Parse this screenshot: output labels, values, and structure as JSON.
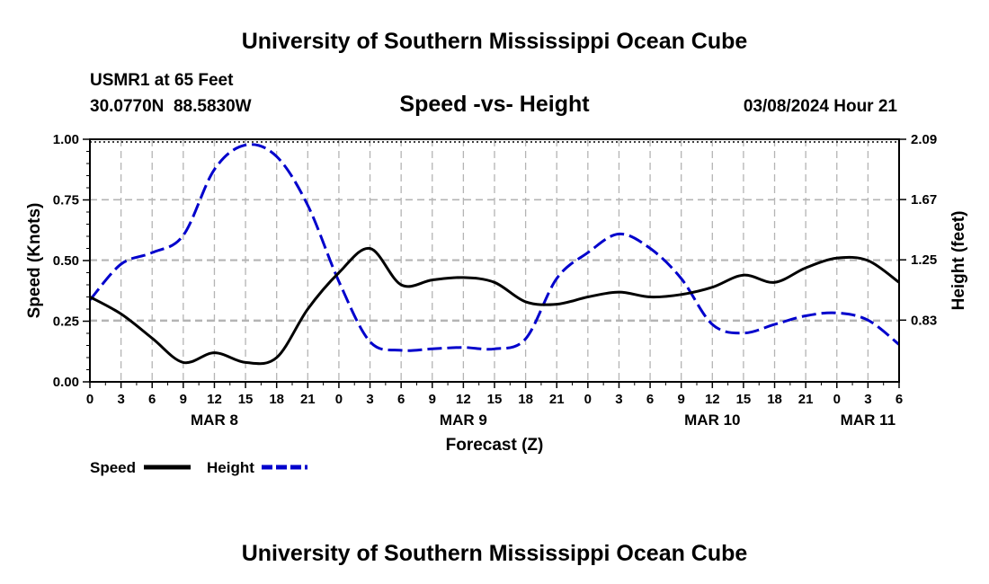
{
  "header": {
    "title_top": "University of Southern Mississippi Ocean Cube",
    "station": "USMR1 at 65 Feet",
    "coords": "30.0770N  88.5830W",
    "chart_title": "Speed -vs- Height",
    "datetime": "03/08/2024 Hour 21",
    "title_bottom": "University of Southern Mississippi Ocean Cube"
  },
  "legend": {
    "speed_label": "Speed",
    "height_label": "Height"
  },
  "colors": {
    "speed": "#000000",
    "height": "#0000cc",
    "grid": "#b4b4b4"
  },
  "chart_data": {
    "type": "line",
    "title": "Speed -vs- Height",
    "xlabel": "Forecast (Z)",
    "ylabel": "Speed (Knots)",
    "y2label": "Height (feet)",
    "xlim": [
      0,
      78
    ],
    "ylim": [
      0,
      1.0
    ],
    "y2lim": [
      0.4,
      2.09
    ],
    "grid": true,
    "x_ticks": [
      0,
      3,
      6,
      9,
      12,
      15,
      18,
      21,
      24,
      27,
      30,
      33,
      36,
      39,
      42,
      45,
      48,
      51,
      54,
      57,
      60,
      63,
      66,
      69,
      72,
      75,
      78
    ],
    "x_tick_labels": [
      "0",
      "3",
      "6",
      "9",
      "12",
      "15",
      "18",
      "21",
      "0",
      "3",
      "6",
      "9",
      "12",
      "15",
      "18",
      "21",
      "0",
      "3",
      "6",
      "9",
      "12",
      "15",
      "18",
      "21",
      "0",
      "3",
      "6"
    ],
    "day_labels": [
      {
        "x": 12,
        "label": "MAR 8"
      },
      {
        "x": 36,
        "label": "MAR 9"
      },
      {
        "x": 60,
        "label": "MAR 10"
      },
      {
        "x": 75,
        "label": "MAR 11"
      }
    ],
    "y_ticks": [
      0.0,
      0.25,
      0.5,
      0.75,
      1.0
    ],
    "y_tick_labels": [
      "0.00",
      "0.25",
      "0.50",
      "0.75",
      "1.00"
    ],
    "y2_ticks": [
      0.83,
      1.25,
      1.67,
      2.09
    ],
    "y2_tick_labels": [
      "0.83",
      "1.25",
      "1.67",
      "2.09"
    ],
    "series": [
      {
        "name": "Speed",
        "axis": "left",
        "style": "solid",
        "x": [
          0,
          3,
          6,
          9,
          12,
          15,
          18,
          21,
          24,
          27,
          30,
          33,
          36,
          39,
          42,
          45,
          48,
          51,
          54,
          57,
          60,
          63,
          66,
          69,
          72,
          75,
          78
        ],
        "values": [
          0.35,
          0.28,
          0.18,
          0.08,
          0.12,
          0.08,
          0.1,
          0.3,
          0.45,
          0.55,
          0.4,
          0.42,
          0.43,
          0.41,
          0.33,
          0.32,
          0.35,
          0.37,
          0.35,
          0.36,
          0.39,
          0.44,
          0.41,
          0.47,
          0.51,
          0.5,
          0.41
        ]
      },
      {
        "name": "Height",
        "axis": "right",
        "style": "dashed",
        "x": [
          0,
          3,
          6,
          9,
          12,
          15,
          18,
          21,
          24,
          27,
          30,
          33,
          36,
          39,
          42,
          45,
          48,
          51,
          54,
          57,
          60,
          63,
          66,
          69,
          72,
          75,
          78
        ],
        "values": [
          0.97,
          1.22,
          1.3,
          1.42,
          1.88,
          2.05,
          1.97,
          1.63,
          1.1,
          0.68,
          0.62,
          0.63,
          0.64,
          0.63,
          0.7,
          1.12,
          1.3,
          1.43,
          1.33,
          1.12,
          0.8,
          0.74,
          0.8,
          0.86,
          0.88,
          0.83,
          0.66
        ]
      }
    ]
  }
}
